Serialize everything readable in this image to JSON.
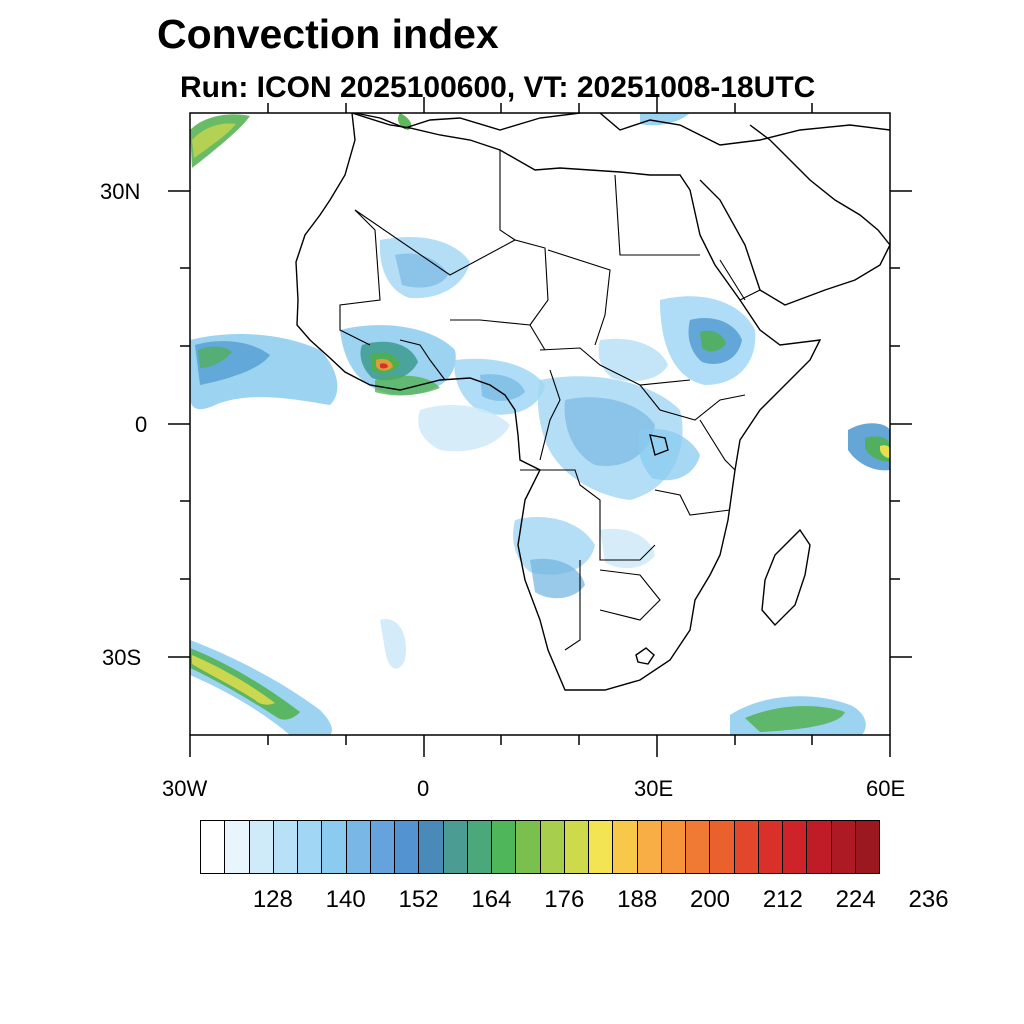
{
  "title": "Convection index",
  "subtitle": "Run: ICON 2025100600,  VT: 20251008-18UTC",
  "map": {
    "projection": "cylindrical equidistant",
    "lon_range": [
      -30,
      60
    ],
    "lat_range": [
      -40,
      40
    ],
    "lon_ticks": [
      {
        "value": -30,
        "label": "30W"
      },
      {
        "value": 0,
        "label": "0"
      },
      {
        "value": 30,
        "label": "30E"
      },
      {
        "value": 60,
        "label": "60E"
      }
    ],
    "lat_ticks": [
      {
        "value": 30,
        "label": "30N"
      },
      {
        "value": 0,
        "label": "0"
      },
      {
        "value": -30,
        "label": "30S"
      }
    ],
    "field_colors": {
      "light": "#bfe3f5",
      "blue": "#6fb3e0",
      "mid": "#4a96cf",
      "teal": "#3d9a8e",
      "green": "#4fb04a",
      "yellow": "#e8df4a",
      "orange": "#f09a3a",
      "red": "#d8332b"
    }
  },
  "colorbar": {
    "colors": [
      "#ffffff",
      "#e8f5fc",
      "#cfeaf8",
      "#b8e0f6",
      "#a1d6f4",
      "#8acbef",
      "#78b7e6",
      "#66a3dc",
      "#5493d2",
      "#4a8ab9",
      "#4b9c93",
      "#4ba87a",
      "#50b65a",
      "#7bc04f",
      "#a7ce4c",
      "#cfd94c",
      "#f2e453",
      "#f7c84a",
      "#f8ae44",
      "#f5943b",
      "#f07a33",
      "#ea612e",
      "#e3472b",
      "#d9312a",
      "#ce2429",
      "#bf1c28",
      "#ad1a24",
      "#9b1820"
    ],
    "labels": [
      "128",
      "140",
      "152",
      "164",
      "176",
      "188",
      "200",
      "212",
      "224",
      "236"
    ]
  }
}
